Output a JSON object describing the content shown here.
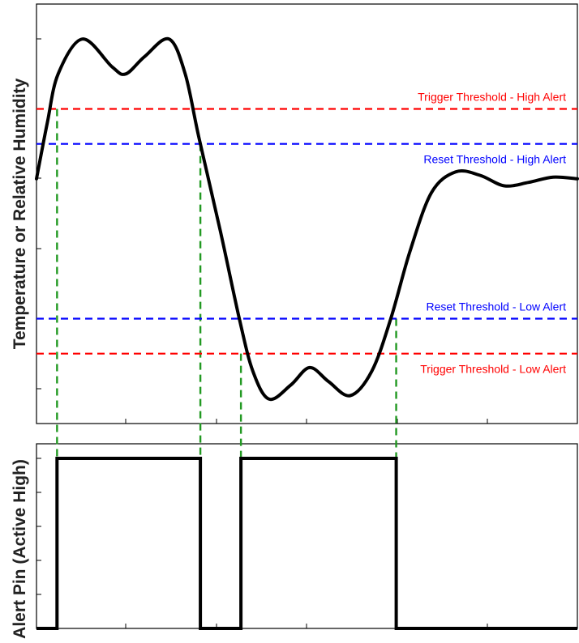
{
  "top_panel": {
    "ylabel": "Temperature or Relative Humidity",
    "thresholds": [
      {
        "key": "trigger-high",
        "label": "Trigger Threshold - High Alert",
        "value": 0.8,
        "color": "#ff0000",
        "label_pos": "above"
      },
      {
        "key": "reset-high",
        "label": "Reset Threshold - High Alert",
        "value": 0.7,
        "color": "#0000ff",
        "label_pos": "below"
      },
      {
        "key": "reset-low",
        "label": "Reset Threshold - Low Alert",
        "value": 0.2,
        "color": "#0000ff",
        "label_pos": "above"
      },
      {
        "key": "trigger-low",
        "label": "Trigger Threshold - Low Alert",
        "value": 0.1,
        "color": "#ff0000",
        "label_pos": "below"
      }
    ],
    "signal": {
      "color": "#000000",
      "points": [
        [
          0,
          0.6
        ],
        [
          0.02,
          0.76
        ],
        [
          0.04,
          0.9
        ],
        [
          0.085,
          1.0
        ],
        [
          0.14,
          0.92
        ],
        [
          0.165,
          0.9
        ],
        [
          0.2,
          0.95
        ],
        [
          0.245,
          1.0
        ],
        [
          0.275,
          0.9
        ],
        [
          0.3,
          0.72
        ],
        [
          0.34,
          0.45
        ],
        [
          0.375,
          0.2
        ],
        [
          0.4,
          0.05
        ],
        [
          0.43,
          -0.03
        ],
        [
          0.47,
          0.01
        ],
        [
          0.505,
          0.06
        ],
        [
          0.54,
          0.02
        ],
        [
          0.58,
          -0.02
        ],
        [
          0.62,
          0.05
        ],
        [
          0.655,
          0.2
        ],
        [
          0.69,
          0.39
        ],
        [
          0.73,
          0.56
        ],
        [
          0.775,
          0.62
        ],
        [
          0.82,
          0.61
        ],
        [
          0.865,
          0.58
        ],
        [
          0.91,
          0.59
        ],
        [
          0.955,
          0.605
        ],
        [
          1.0,
          0.6
        ]
      ]
    },
    "ylim": [
      -0.1,
      1.1
    ],
    "xlim": [
      0,
      1
    ]
  },
  "bottom_panel": {
    "ylabel": "Alert Pin (Active High)",
    "states": [
      {
        "x0": 0,
        "x1": 0.038,
        "level": 0
      },
      {
        "x0": 0.038,
        "x1": 0.303,
        "level": 1
      },
      {
        "x0": 0.303,
        "x1": 0.378,
        "level": 0
      },
      {
        "x0": 0.378,
        "x1": 0.665,
        "level": 1
      },
      {
        "x0": 0.665,
        "x1": 1,
        "level": 0
      }
    ]
  },
  "crossings": [
    0.038,
    0.303,
    0.378,
    0.665
  ],
  "crossing_color": "#229922",
  "grid": false
}
